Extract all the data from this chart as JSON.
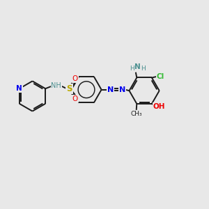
{
  "bg_color": "#e8e8e8",
  "bond_color": "#1a1a1a",
  "bond_lw": 1.4,
  "N_color": "#0000ee",
  "O_color": "#ee0000",
  "S_color": "#bbaa00",
  "Cl_color": "#33bb33",
  "teal_color": "#4a8f8f",
  "black_color": "#1a1a1a",
  "figsize": [
    3.0,
    3.0
  ],
  "dpi": 100,
  "xlim": [
    0,
    10
  ],
  "ylim": [
    1,
    9
  ]
}
